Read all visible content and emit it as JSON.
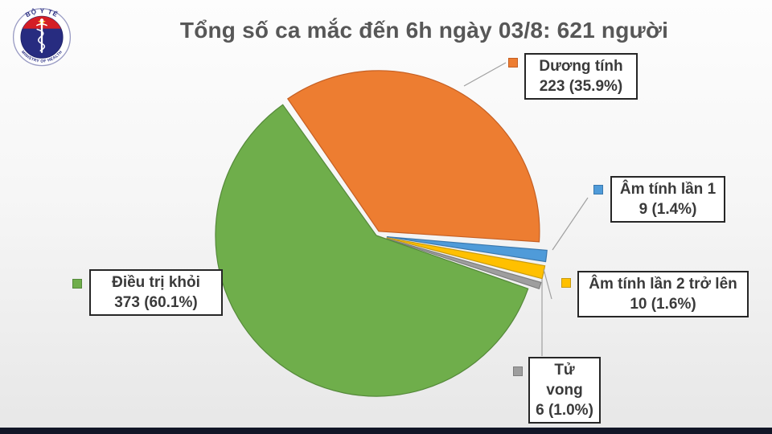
{
  "page": {
    "background_top": "#fdfdfd",
    "background_bottom": "#e7e7e7",
    "bottom_bar_color": "#121627"
  },
  "logo": {
    "top_text": "BỘ Y TẾ",
    "bottom_text": "MINISTRY OF HEALTH",
    "ring_color": "#9a9cc4",
    "inner_color": "#272c80",
    "band_color": "#d41e25",
    "star_color": "#ffd23d",
    "staff_color": "#ffffff"
  },
  "title": {
    "text": "Tổng số ca mắc đến 6h ngày 03/8: 621 người",
    "color": "#575757"
  },
  "chart_data": {
    "type": "pie",
    "title": "Tổng số ca mắc đến 6h ngày 03/8: 621 người",
    "total": 621,
    "unit": "người",
    "start_angle_deg": -35,
    "direction": "clockwise",
    "legend_position": "callouts-around-pie",
    "slices": [
      {
        "label": "Dương tính",
        "value": 223,
        "pct": "35.9%",
        "color": "#ED7D31",
        "edge": "#c55f23",
        "explode": 6
      },
      {
        "label": "Âm tính lần 1",
        "value": 9,
        "pct": "1.4%",
        "color": "#4F9BD9",
        "edge": "#3b78ad",
        "explode": 13
      },
      {
        "label": "Âm tính lần 2 trở lên",
        "value": 10,
        "pct": "1.6%",
        "color": "#FFC000",
        "edge": "#c79a10",
        "explode": 13
      },
      {
        "label": "Tử vong",
        "value": 6,
        "pct": "1.0%",
        "color": "#9E9E9E",
        "edge": "#7d7d7d",
        "explode": 13
      },
      {
        "label": "Điều trị khỏi",
        "value": 373,
        "pct": "60.1%",
        "color": "#6FAE4B",
        "edge": "#55893a",
        "explode": 0
      }
    ],
    "callouts": {
      "positive": {
        "title": "Dương tính",
        "detail": "223 (35.9%)"
      },
      "negative1": {
        "title": "Âm tính lần 1",
        "detail": "9 (1.4%)"
      },
      "negative2plus": {
        "title": "Âm tính lần 2 trở lên",
        "detail": "10 (1.6%)"
      },
      "deaths": {
        "title": "Tử vong",
        "detail": "6 (1.0%)"
      },
      "recovered": {
        "title": "Điều trị khỏi",
        "detail": "373 (60.1%)"
      }
    }
  }
}
